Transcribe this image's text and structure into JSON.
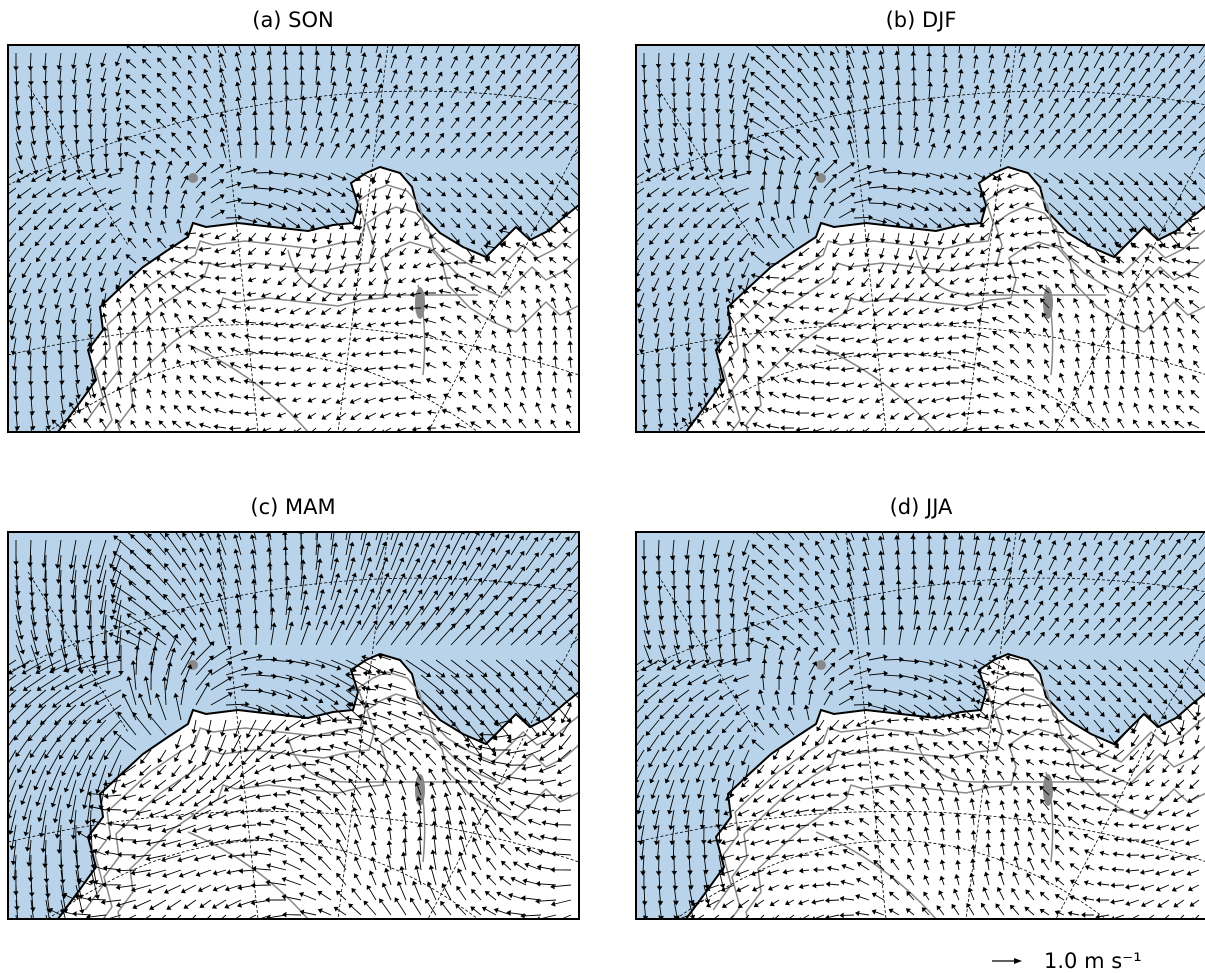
{
  "panels": [
    {
      "title": "(a) SON"
    },
    {
      "title": "(b) DJF"
    },
    {
      "title": "(c) MAM"
    },
    {
      "title": "(d) JJA"
    }
  ],
  "quiver_key": {
    "label": "1.0 m s⁻¹"
  }
}
